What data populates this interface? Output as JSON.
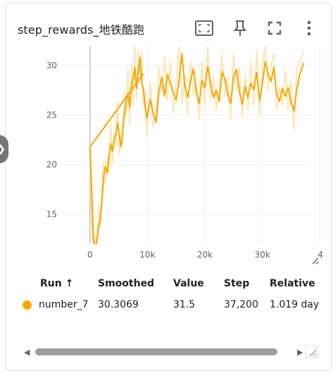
{
  "card": {
    "title": "step_rewards_地铁酷跑",
    "toolbar": [
      "fit-screen-icon",
      "pin-icon",
      "fullscreen-icon",
      "more-vert-icon"
    ]
  },
  "chart_data": {
    "type": "line",
    "x_ticks": [
      "0",
      "10k",
      "20k",
      "30k",
      "4"
    ],
    "y_ticks": [
      "15",
      "20",
      "25",
      "30"
    ],
    "xlim": [
      -5000,
      38500
    ],
    "ylim": [
      12,
      32
    ],
    "series": [
      {
        "name": "number_7",
        "color": "#f9a600",
        "x": [
          0,
          300,
          600,
          900,
          1200,
          1500,
          1800,
          2100,
          2400,
          2700,
          3000,
          3300,
          3600,
          3900,
          4200,
          4500,
          4800,
          5100,
          5400,
          5700,
          6000,
          6300,
          6600,
          6900,
          7200,
          7500,
          7800,
          8100,
          8400,
          8700,
          9000,
          9300,
          9600,
          9900,
          10500,
          11000,
          11500,
          12000,
          12500,
          13000,
          13500,
          14000,
          14500,
          15000,
          15500,
          16000,
          16500,
          17000,
          17500,
          18000,
          18500,
          19000,
          19500,
          20000,
          20500,
          21000,
          21500,
          22000,
          22500,
          23000,
          23500,
          24000,
          24500,
          25000,
          25500,
          26000,
          26500,
          27000,
          27500,
          28000,
          28500,
          29000,
          29500,
          30000,
          30500,
          31000,
          31500,
          32000,
          32500,
          33000,
          33500,
          34000,
          34500,
          35000,
          35500,
          36000,
          36500,
          37200
        ],
        "smoothed": [
          21.8,
          17.5,
          12.4,
          11.8,
          12.3,
          13.8,
          14.5,
          16.5,
          18.9,
          19.8,
          19.2,
          20.6,
          22.1,
          21.4,
          22.5,
          23.1,
          24.2,
          22.9,
          21.8,
          23.5,
          25.1,
          26.3,
          27.2,
          25.8,
          27.9,
          28.6,
          29.8,
          27.7,
          29.5,
          30.8,
          28.3,
          27.6,
          25.9,
          24.7,
          26.6,
          25.2,
          24.3,
          27.4,
          28.8,
          26.9,
          29.1,
          28.2,
          27.3,
          26.5,
          28.6,
          31.2,
          27.9,
          26.8,
          28.4,
          29.7,
          27.3,
          26.2,
          28.5,
          27.8,
          29.9,
          28.1,
          26.8,
          27.5,
          26.4,
          29.4,
          28.6,
          27.1,
          26.2,
          28.9,
          29.6,
          27.4,
          26.1,
          27.9,
          26.8,
          28.2,
          27.6,
          29.3,
          26.5,
          28.1,
          30.4,
          29.1,
          28.4,
          29.8,
          27.1,
          26.4,
          27.7,
          26.9,
          27.8,
          26.3,
          25.4,
          27.6,
          29.1,
          30.3
        ],
        "raw": [
          21.8,
          14,
          11.5,
          13,
          11.8,
          16,
          13.5,
          18,
          20.5,
          18,
          21,
          19,
          24.5,
          20,
          23.2,
          21.8,
          26.5,
          21,
          23,
          22,
          27.5,
          24.8,
          29.8,
          24,
          30.3,
          26,
          32,
          26.5,
          31.5,
          28.5,
          31.5,
          26,
          27.5,
          22.8,
          28.5,
          23.6,
          25.5,
          29.8,
          27.2,
          31,
          26.5,
          30.5,
          25.2,
          28.5,
          32,
          26,
          29,
          25,
          30.5,
          27,
          28.5,
          24.5,
          30.5,
          26,
          32,
          26.5,
          29,
          25.5,
          28,
          31.2,
          26.8,
          29,
          24.5,
          31.2,
          27.5,
          29.8,
          24.8,
          29.2,
          25.5,
          30.5,
          26,
          31.5,
          25,
          29.5,
          32,
          27.5,
          30,
          31.2,
          25.5,
          28,
          26,
          29.5,
          25.5,
          28.5,
          23.5,
          29.8,
          30.4,
          31.5
        ]
      }
    ]
  },
  "table": {
    "headers": [
      "Run ↑",
      "Smoothed",
      "Value",
      "Step",
      "Relative"
    ],
    "row": {
      "run": "number_7",
      "smoothed": "30.3069",
      "value": "31.5",
      "step": "37,200",
      "relative": "1.019 day"
    }
  },
  "scrollbar": {
    "left_arrow": "◀",
    "right_arrow": "▶"
  }
}
